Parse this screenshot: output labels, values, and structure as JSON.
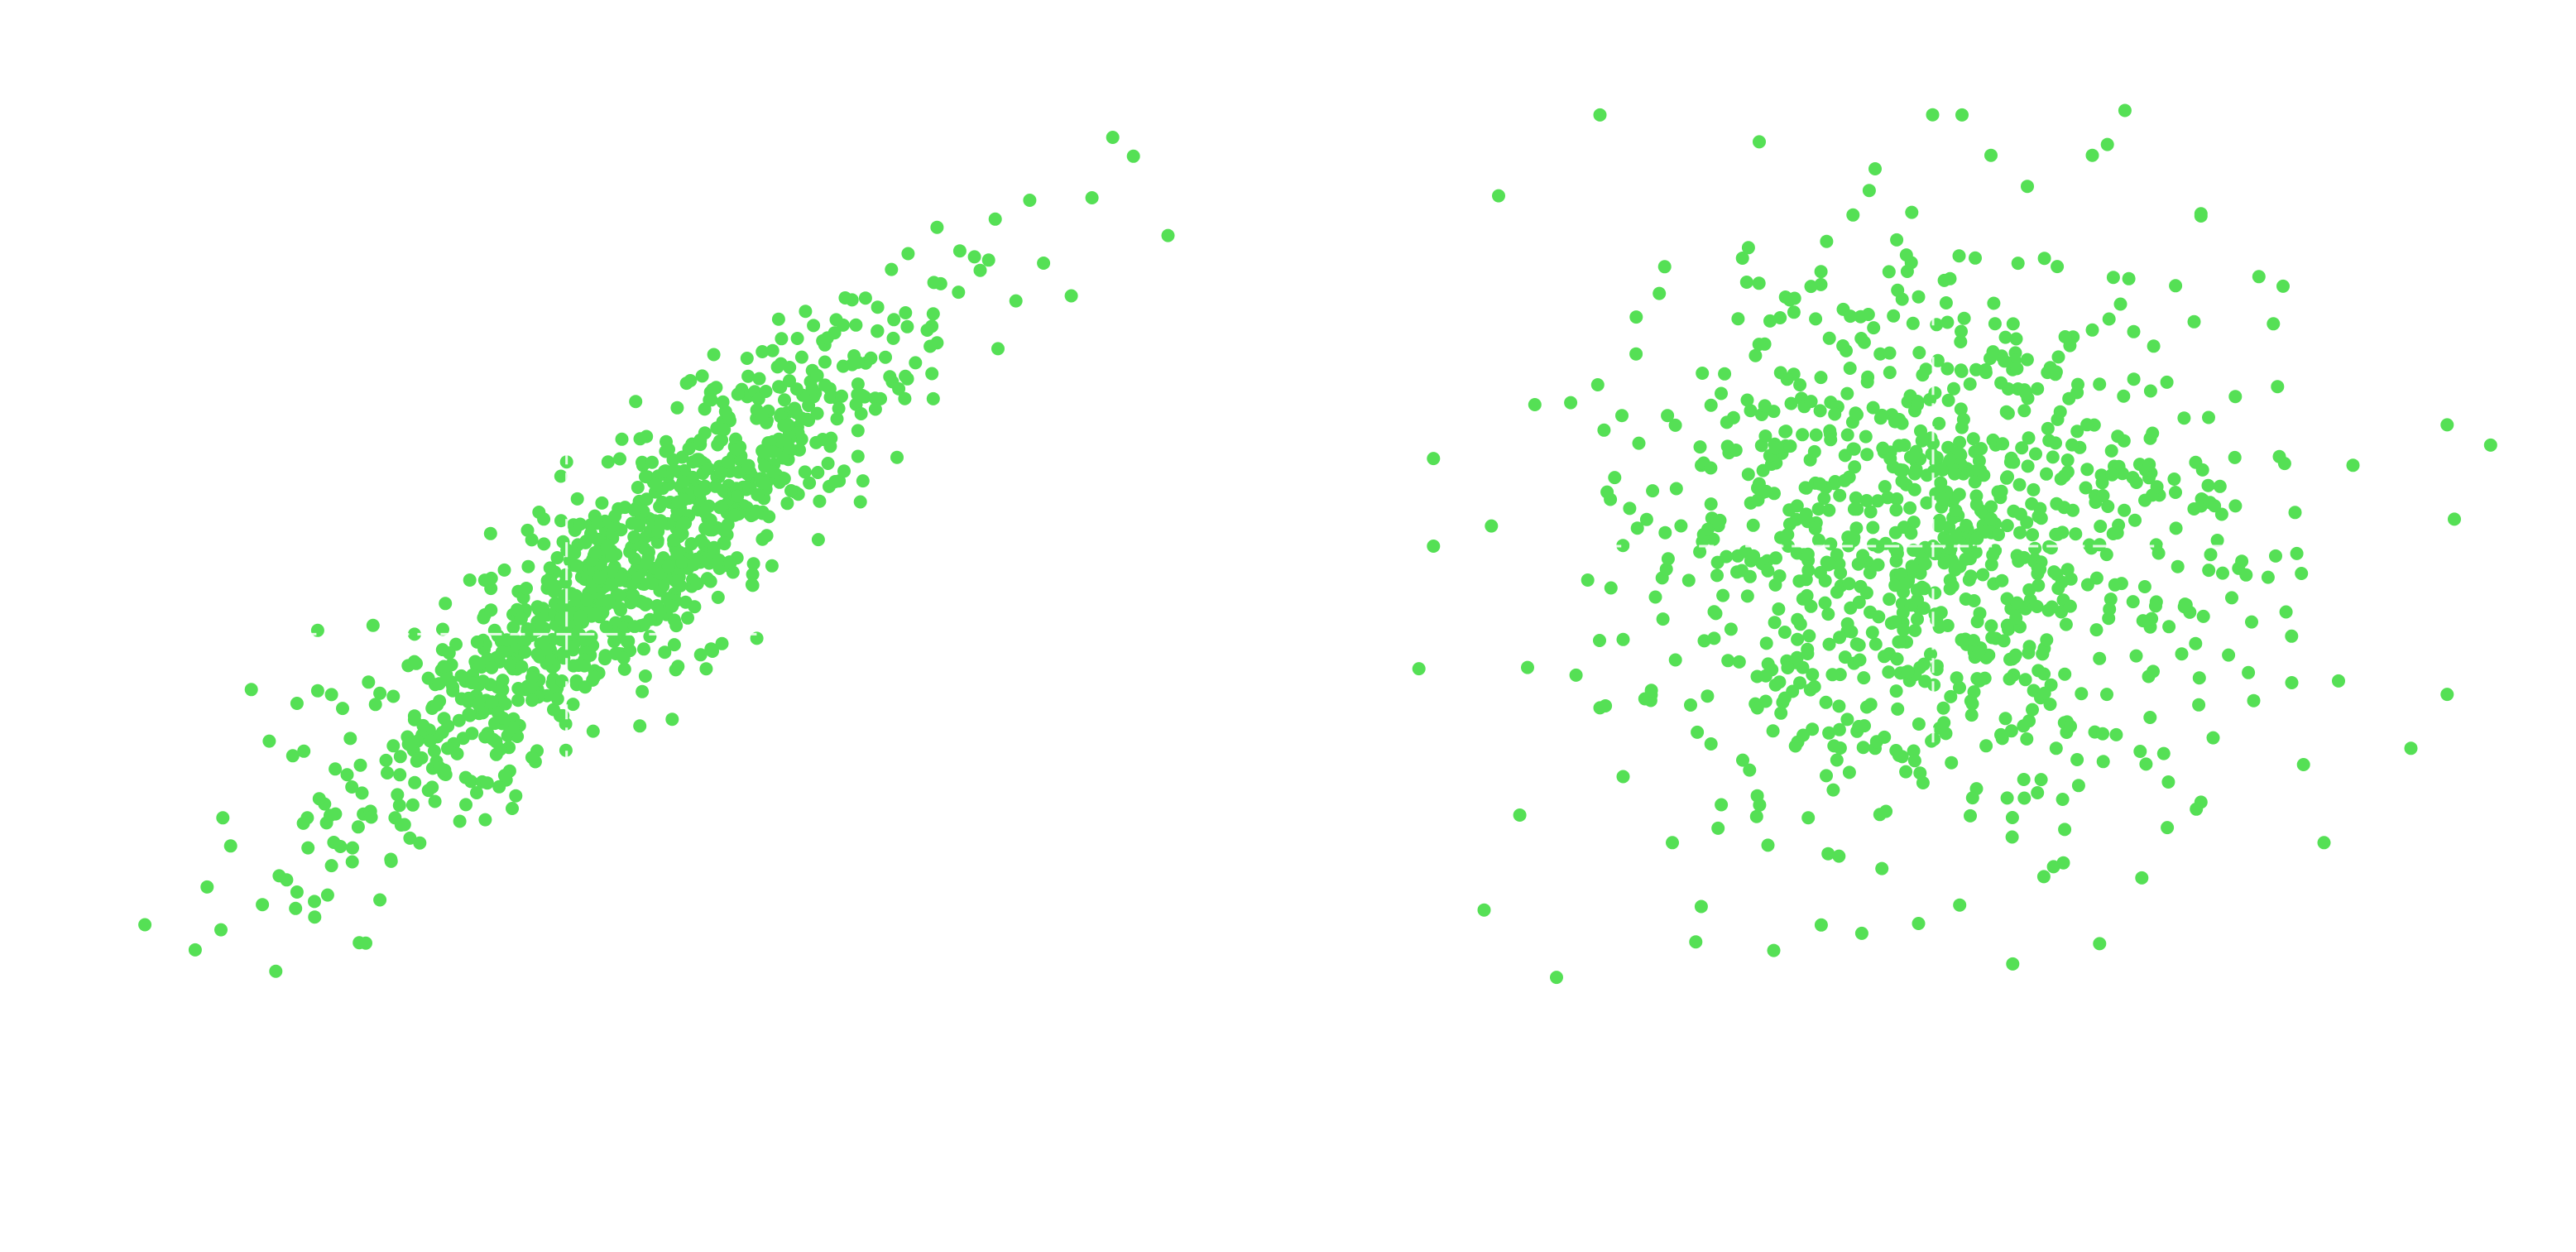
{
  "chart_data": [
    {
      "type": "scatter",
      "title": "",
      "xlabel": "",
      "ylabel": "",
      "grid": false,
      "axes_visible": false,
      "xlim": [
        -3.7,
        4.2
      ],
      "ylim": [
        -3.6,
        3.9
      ],
      "point_count": 1000,
      "correlation": 0.9,
      "mean_x": 0.0,
      "mean_y": 0.0,
      "std_x": 1.0,
      "std_y": 1.0,
      "series": [
        {
          "color": "#55e055",
          "points": [
            [
              -3.55,
              -2.86
            ],
            [
              -3.0,
              -2.9
            ],
            [
              -3.1,
              -2.56
            ],
            [
              -2.7,
              -2.7
            ],
            [
              -2.45,
              -2.6
            ],
            [
              -2.46,
              -2.73
            ],
            [
              -2.2,
              -2.39
            ],
            [
              -2.05,
              -2.36
            ],
            [
              -2.25,
              -1.9
            ],
            [
              -1.97,
              -1.98
            ],
            [
              -2.4,
              -1.48
            ],
            [
              -2.65,
              -1.4
            ],
            [
              -2.78,
              -0.99
            ],
            [
              -2.45,
              -1.1
            ],
            [
              -2.3,
              -1.0
            ],
            [
              -2.2,
              -1.03
            ],
            [
              -2.12,
              -1.14
            ],
            [
              -1.85,
              -1.02
            ],
            [
              -1.5,
              -0.9
            ],
            [
              -1.45,
              -0.95
            ],
            [
              -2.3,
              -0.52
            ],
            [
              -1.9,
              -0.48
            ],
            [
              -1.6,
              -0.55
            ],
            [
              -1.3,
              -0.63
            ],
            [
              -1.1,
              -0.42
            ],
            [
              -1.02,
              -0.52
            ],
            [
              -0.9,
              -0.7
            ],
            [
              -0.22,
              -0.72
            ],
            [
              -1.2,
              -0.12
            ],
            [
              -0.95,
              -0.04
            ],
            [
              -0.6,
              -0.18
            ],
            [
              -0.2,
              -0.3
            ],
            [
              0.05,
              -0.15
            ],
            [
              -1.05,
              0.25
            ],
            [
              -0.7,
              0.42
            ],
            [
              -0.45,
              0.32
            ],
            [
              0.12,
              0.35
            ],
            [
              0.35,
              0.58
            ],
            [
              -0.5,
              0.82
            ],
            [
              -0.2,
              0.82
            ],
            [
              0.22,
              0.98
            ],
            [
              0.5,
              1.05
            ],
            [
              0.65,
              1.22
            ],
            [
              0.95,
              1.15
            ],
            [
              1.25,
              1.15
            ],
            [
              0.3,
              1.25
            ],
            [
              0.0,
              1.3
            ],
            [
              -0.1,
              1.0
            ],
            [
              1.05,
              1.6
            ],
            [
              1.5,
              1.58
            ],
            [
              1.95,
              1.5
            ],
            [
              1.45,
              1.95
            ],
            [
              1.75,
              2.05
            ],
            [
              1.85,
              2.35
            ],
            [
              2.45,
              2.45
            ],
            [
              2.62,
              1.72
            ],
            [
              2.75,
              2.1
            ],
            [
              2.6,
              2.75
            ],
            [
              2.85,
              2.9
            ],
            [
              3.3,
              2.92
            ],
            [
              3.6,
              3.25
            ],
            [
              3.45,
              3.4
            ],
            [
              3.85,
              2.62
            ],
            [
              2.95,
              2.4
            ],
            [
              3.15,
              2.14
            ],
            [
              1.0,
              0.8
            ],
            [
              0.8,
              0.6
            ],
            [
              1.2,
              1.0
            ],
            [
              -0.8,
              -0.6
            ],
            [
              -1.6,
              -1.2
            ],
            [
              -0.4,
              -0.3
            ],
            [
              0.6,
              0.7
            ]
          ]
        }
      ],
      "guide_lines": [
        {
          "style": "dashed",
          "axis": "x",
          "value": -0.5
        },
        {
          "style": "dashed",
          "axis": "y",
          "value": -0.55
        }
      ]
    },
    {
      "type": "scatter",
      "title": "",
      "xlabel": "",
      "ylabel": "",
      "grid": false,
      "axes_visible": false,
      "xlim": [
        -3.6,
        3.6
      ],
      "ylim": [
        -3.5,
        3.5
      ],
      "point_count": 1000,
      "correlation": 0.0,
      "mean_x": 0.0,
      "mean_y": 0.0,
      "std_x": 1.0,
      "std_y": 1.0,
      "series": [
        {
          "color": "#55e055",
          "points": [
            [
              -3.0,
              2.6
            ],
            [
              -2.3,
              3.2
            ],
            [
              -1.2,
              3.0
            ],
            [
              -0.4,
              2.8
            ],
            [
              0.4,
              2.9
            ],
            [
              0.2,
              3.2
            ],
            [
              1.1,
              2.9
            ],
            [
              1.85,
              2.45
            ],
            [
              2.25,
              2.0
            ],
            [
              -2.75,
              1.05
            ],
            [
              -3.45,
              0.65
            ],
            [
              -3.05,
              0.15
            ],
            [
              -3.45,
              0.0
            ],
            [
              -2.8,
              -0.9
            ],
            [
              -3.1,
              -2.7
            ],
            [
              -2.6,
              -3.2
            ],
            [
              -1.1,
              -3.0
            ],
            [
              -0.1,
              -2.8
            ],
            [
              0.55,
              -3.1
            ],
            [
              1.15,
              -2.95
            ],
            [
              2.7,
              -2.2
            ],
            [
              3.3,
              -1.5
            ],
            [
              3.55,
              -1.1
            ],
            [
              3.6,
              0.2
            ],
            [
              3.55,
              0.9
            ],
            [
              3.85,
              0.75
            ],
            [
              2.9,
              0.6
            ],
            [
              2.5,
              0.25
            ],
            [
              2.0,
              -0.2
            ],
            [
              1.5,
              -0.6
            ],
            [
              1.2,
              -1.1
            ],
            [
              0.85,
              -1.5
            ],
            [
              0.3,
              -1.8
            ],
            [
              -0.4,
              -1.5
            ],
            [
              -0.9,
              -0.9
            ],
            [
              -1.5,
              -0.5
            ],
            [
              -1.85,
              0.1
            ],
            [
              -1.6,
              0.6
            ],
            [
              -1.1,
              1.0
            ],
            [
              -0.6,
              1.45
            ],
            [
              -0.1,
              1.85
            ],
            [
              0.5,
              1.55
            ],
            [
              1.0,
              1.2
            ],
            [
              1.5,
              0.8
            ],
            [
              1.9,
              0.45
            ],
            [
              -0.25,
              0.35
            ],
            [
              0.25,
              -0.25
            ],
            [
              0.0,
              0.0
            ],
            [
              -0.5,
              -0.3
            ],
            [
              0.6,
              0.1
            ],
            [
              -1.0,
              0.0
            ],
            [
              0.9,
              -0.4
            ],
            [
              -2.3,
              -1.2
            ],
            [
              -2.05,
              1.7
            ],
            [
              2.35,
              1.65
            ],
            [
              2.8,
              -1.0
            ],
            [
              -0.65,
              -2.3
            ],
            [
              0.9,
              -2.35
            ],
            [
              -1.8,
              -2.2
            ],
            [
              1.85,
              -1.9
            ]
          ]
        }
      ],
      "guide_lines": [
        {
          "style": "dashed",
          "axis": "x",
          "value": 0.0
        },
        {
          "style": "dashed",
          "axis": "y",
          "value": 0.0
        }
      ]
    }
  ]
}
